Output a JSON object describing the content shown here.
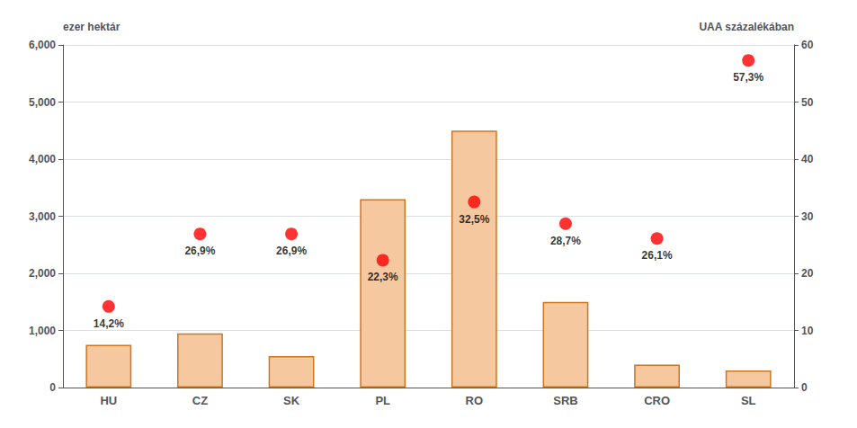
{
  "chart_data": {
    "type": "bar",
    "categories": [
      "HU",
      "CZ",
      "SK",
      "PL",
      "RO",
      "SRB",
      "CRO",
      "SL"
    ],
    "series": [
      {
        "type": "bar",
        "color": "#F5C8A0",
        "values": [
          750,
          950,
          550,
          3300,
          4500,
          1500,
          400,
          300
        ]
      },
      {
        "type": "scatter",
        "axis": "y2",
        "color": "#FF0000",
        "marker": "circle",
        "data_labels": true,
        "values": [
          14.2,
          26.9,
          26.9,
          22.3,
          32.5,
          28.7,
          26.1,
          57.3
        ],
        "value_labels": [
          "14,2%",
          "26,9%",
          "26,9%",
          "22,3%",
          "32,5%",
          "28,7%",
          "26,1%",
          "57,3%"
        ]
      }
    ],
    "ylim": [
      0,
      6000
    ],
    "yticks": [
      0,
      1000,
      2000,
      3000,
      4000,
      5000,
      6000
    ],
    "y2lim": [
      0,
      60
    ],
    "y2ticks": [
      0,
      10,
      20,
      30,
      40,
      50,
      60
    ],
    "ylabel": "ezer hektár",
    "y2label": "UAA százalékában",
    "grid": true
  }
}
